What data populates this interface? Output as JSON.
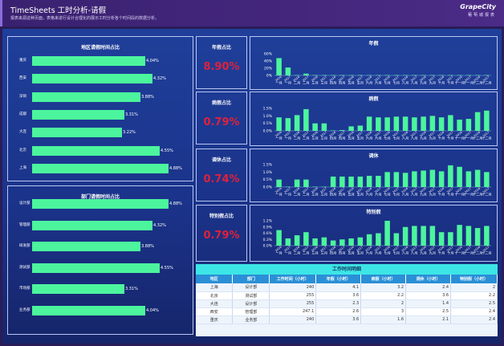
{
  "header": {
    "title": "TimeSheets 工时分析-请假",
    "subtitle": "报表来源这种页面，表格来进行设计合理化的展示工时分析各个时间段的数据分析。",
    "brand": "GrapeCity",
    "brand_sub": "葡萄城报表"
  },
  "colors": {
    "bar": "#4cf59d",
    "kpi": "#e0213a",
    "background": "#1f3f9a"
  },
  "region_panel": {
    "title": "地区请假时间占比",
    "items": [
      {
        "label": "重庆",
        "value_text": "4.04%",
        "value": 4.04
      },
      {
        "label": "西安",
        "value_text": "4.32%",
        "value": 4.32
      },
      {
        "label": "深圳",
        "value_text": "3.88%",
        "value": 3.88
      },
      {
        "label": "成都",
        "value_text": "3.31%",
        "value": 3.31
      },
      {
        "label": "大连",
        "value_text": "3.22%",
        "value": 3.22
      },
      {
        "label": "北京",
        "value_text": "4.55%",
        "value": 4.55
      },
      {
        "label": "上海",
        "value_text": "4.88%",
        "value": 4.88
      }
    ]
  },
  "dept_panel": {
    "title": "部门请假时间占比",
    "items": [
      {
        "label": "设计部",
        "value_text": "4.88%",
        "value": 4.88
      },
      {
        "label": "管理部",
        "value_text": "4.32%",
        "value": 4.32
      },
      {
        "label": "研发部",
        "value_text": "3.88%",
        "value": 3.88
      },
      {
        "label": "测试部",
        "value_text": "4.55%",
        "value": 4.55
      },
      {
        "label": "市场部",
        "value_text": "3.31%",
        "value": 3.31
      },
      {
        "label": "业务部",
        "value_text": "4.04%",
        "value": 4.04
      }
    ]
  },
  "kpis": [
    {
      "title": "年假占比",
      "value": "8.90%"
    },
    {
      "title": "病假占比",
      "value": "0.79%"
    },
    {
      "title": "调休占比",
      "value": "0.74%"
    },
    {
      "title": "特别假占比",
      "value": "0.79%"
    }
  ],
  "chart_data": [
    {
      "type": "bar",
      "title": "年假",
      "ylim": [
        0,
        60
      ],
      "yticks": [
        "60%",
        "40%",
        "20%",
        "0%"
      ],
      "categories": [
        "2016 一月",
        "2017 一月",
        "2016 二月",
        "2017 二月",
        "2016 三月",
        "2017 三月",
        "2016 四月",
        "2017 四月",
        "2016 五月",
        "2017 五月",
        "2016 六月",
        "2017 六月",
        "2016 七月",
        "2017 七月",
        "2016 八月",
        "2017 八月",
        "2016 九月",
        "2017 九月",
        "2016 十月",
        "2017 十月",
        "2016 十一月",
        "2017 十一月",
        "2016 十二月",
        "2017 十二月"
      ],
      "values": [
        48,
        22,
        1,
        5,
        1,
        1,
        1,
        1,
        1,
        1,
        1,
        1,
        1,
        1,
        1,
        1,
        1,
        1,
        1,
        1,
        1,
        1,
        1,
        1
      ]
    },
    {
      "type": "bar",
      "title": "病假",
      "ylim": [
        0,
        1.5
      ],
      "yticks": [
        "1.5%",
        "1.0%",
        "0.5%",
        "0.0%"
      ],
      "categories": [
        "2016 一月",
        "2017 一月",
        "2016 二月",
        "2017 二月",
        "2016 三月",
        "2017 三月",
        "2016 四月",
        "2017 四月",
        "2016 五月",
        "2017 五月",
        "2016 六月",
        "2017 六月",
        "2016 七月",
        "2017 七月",
        "2016 八月",
        "2017 八月",
        "2016 九月",
        "2017 九月",
        "2016 十月",
        "2017 十月",
        "2016 十一月",
        "2017 十一月",
        "2016 十二月",
        "2017 十二月"
      ],
      "values": [
        0.9,
        0.85,
        1.05,
        1.45,
        0.5,
        0.5,
        0.02,
        0.05,
        0.3,
        0.35,
        0.95,
        0.9,
        0.9,
        0.95,
        0.95,
        0.9,
        0.95,
        1.0,
        0.9,
        1.05,
        0.75,
        0.8,
        1.25,
        1.35
      ]
    },
    {
      "type": "bar",
      "title": "调休",
      "ylim": [
        0,
        1.5
      ],
      "yticks": [
        "1.5%",
        "1.0%",
        "0.5%",
        "0.0%"
      ],
      "categories": [
        "2016 一月",
        "2017 一月",
        "2016 二月",
        "2017 二月",
        "2016 三月",
        "2017 三月",
        "2016 四月",
        "2017 四月",
        "2016 五月",
        "2017 五月",
        "2016 六月",
        "2017 六月",
        "2016 七月",
        "2017 七月",
        "2016 八月",
        "2017 八月",
        "2016 九月",
        "2017 九月",
        "2016 十月",
        "2017 十月",
        "2016 十一月",
        "2017 十一月",
        "2016 十二月",
        "2017 十二月"
      ],
      "values": [
        0.5,
        0.02,
        0.5,
        0.5,
        0.02,
        0.02,
        0.7,
        0.7,
        0.7,
        0.7,
        0.75,
        0.75,
        1.0,
        1.0,
        0.95,
        1.05,
        1.1,
        1.15,
        1.05,
        1.45,
        1.35,
        1.05,
        1.15,
        1.0
      ]
    },
    {
      "type": "bar",
      "title": "特别假",
      "ylim": [
        0,
        1.2
      ],
      "yticks": [
        "1.2%",
        "0.9%",
        "0.6%",
        "0.3%",
        "0.0%"
      ],
      "categories": [
        "2016 一月",
        "2017 一月",
        "2016 二月",
        "2017 二月",
        "2016 三月",
        "2017 三月",
        "2016 四月",
        "2017 四月",
        "2016 五月",
        "2017 五月",
        "2016 六月",
        "2017 六月",
        "2016 七月",
        "2017 七月",
        "2016 八月",
        "2017 八月",
        "2016 九月",
        "2017 九月",
        "2016 十月",
        "2017 十月",
        "2016 十一月",
        "2017 十一月",
        "2016 十二月",
        "2017 十二月"
      ],
      "values": [
        0.75,
        0.35,
        0.5,
        0.65,
        0.35,
        0.4,
        0.25,
        0.3,
        0.35,
        0.4,
        0.55,
        0.6,
        1.2,
        0.6,
        0.9,
        0.95,
        0.95,
        0.95,
        0.65,
        0.65,
        1.0,
        0.95,
        0.85,
        0.95
      ]
    }
  ],
  "table": {
    "title": "工作时间明细",
    "columns": [
      "地区",
      "部门",
      "工作时间（小时）",
      "年假（小时）",
      "病假（小时）",
      "调休（小时）",
      "特别假（小时）"
    ],
    "rows": [
      [
        "上海",
        "设计部",
        "240",
        "4.1",
        "3.2",
        "2.4",
        "2"
      ],
      [
        "北京",
        "测试部",
        "255",
        "3.6",
        "2.2",
        "3.6",
        "2.2"
      ],
      [
        "大连",
        "设计部",
        "255",
        "2.3",
        "2",
        "1.4",
        "2.5"
      ],
      [
        "西安",
        "管理部",
        "247.1",
        "2.6",
        "3",
        "2.5",
        "2.4"
      ],
      [
        "重庆",
        "业务部",
        "240",
        "3.6",
        "1.6",
        "2.1",
        "2.4"
      ]
    ]
  }
}
